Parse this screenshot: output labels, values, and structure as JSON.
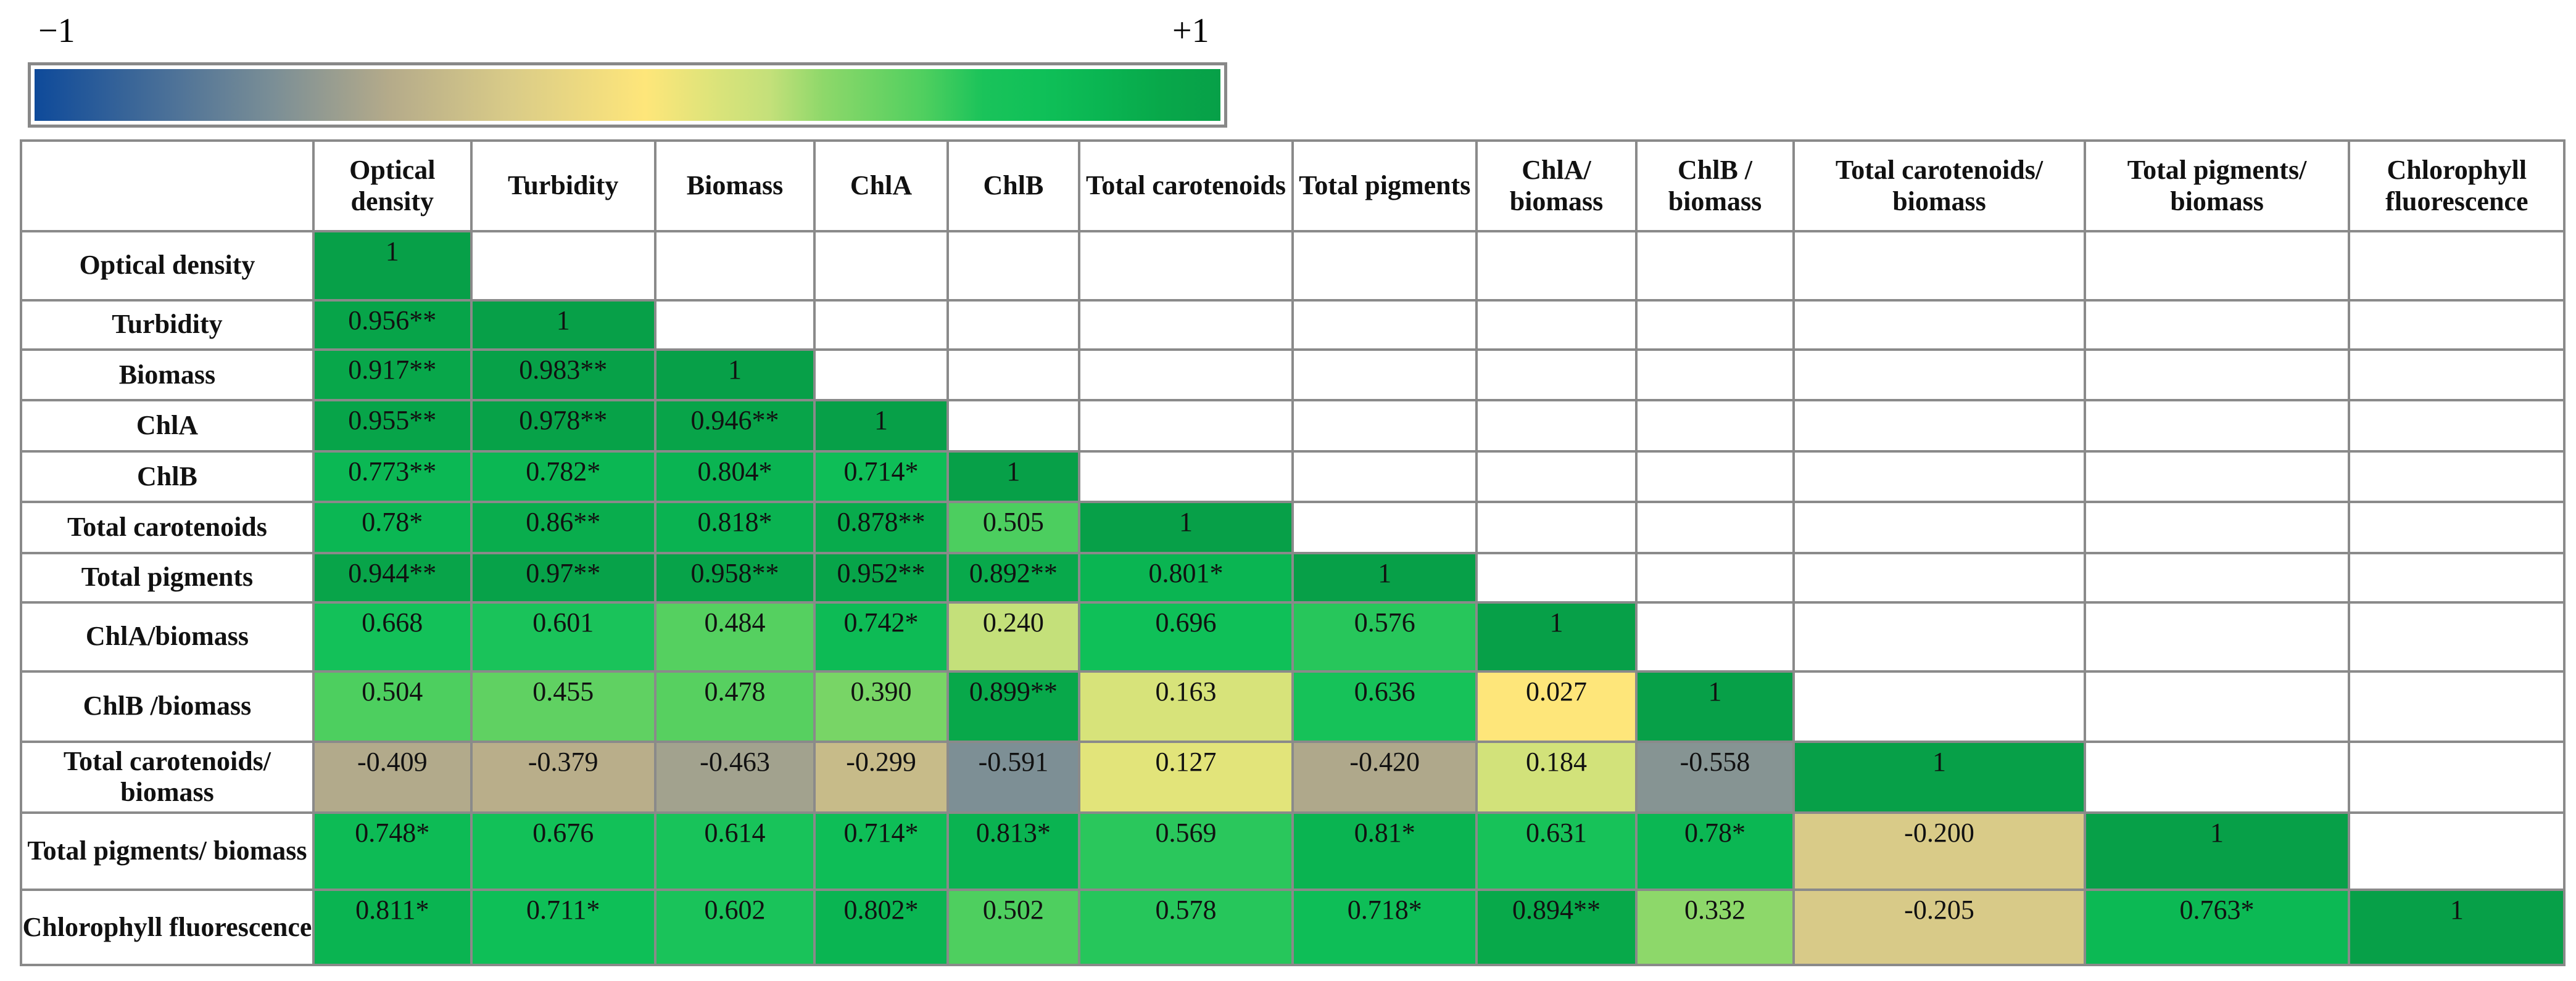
{
  "colorbar": {
    "min_label": "−1",
    "max_label": "+1"
  },
  "table": {
    "columns": [
      "Optical density",
      "Turbidity",
      "Biomass",
      "ChlA",
      "ChlB",
      "Total carotenoids",
      "Total pigments",
      "ChlA/ biomass",
      "ChlB / biomass",
      "Total carotenoids/ biomass",
      "Total pigments/ biomass",
      "Chlorophyll fluorescence"
    ],
    "rows": [
      {
        "label": "Optical density",
        "cells": [
          "1"
        ]
      },
      {
        "label": "Turbidity",
        "cells": [
          "0.956**",
          "1"
        ]
      },
      {
        "label": "Biomass",
        "cells": [
          "0.917**",
          "0.983**",
          "1"
        ]
      },
      {
        "label": "ChlA",
        "cells": [
          "0.955**",
          "0.978**",
          "0.946**",
          "1"
        ]
      },
      {
        "label": "ChlB",
        "cells": [
          "0.773**",
          "0.782*",
          "0.804*",
          "0.714*",
          "1"
        ]
      },
      {
        "label": "Total carotenoids",
        "cells": [
          "0.78*",
          "0.86**",
          "0.818*",
          "0.878**",
          "0.505",
          "1"
        ]
      },
      {
        "label": "Total pigments",
        "cells": [
          "0.944**",
          "0.97**",
          "0.958**",
          "0.952**",
          "0.892**",
          "0.801*",
          "1"
        ]
      },
      {
        "label": "ChlA/biomass",
        "cells": [
          "0.668",
          "0.601",
          "0.484",
          "0.742*",
          "0.240",
          "0.696",
          "0.576",
          "1"
        ]
      },
      {
        "label": "ChlB /biomass",
        "cells": [
          "0.504",
          "0.455",
          "0.478",
          "0.390",
          "0.899**",
          "0.163",
          "0.636",
          "0.027",
          "1"
        ]
      },
      {
        "label": "Total carotenoids/ biomass",
        "cells": [
          "-0.409",
          "-0.379",
          "-0.463",
          "-0.299",
          "-0.591",
          "0.127",
          "-0.420",
          "0.184",
          "-0.558",
          "1"
        ]
      },
      {
        "label": "Total pigments/ biomass",
        "cells": [
          "0.748*",
          "0.676",
          "0.614",
          "0.714*",
          "0.813*",
          "0.569",
          "0.81*",
          "0.631",
          "0.78*",
          "-0.200",
          "1"
        ]
      },
      {
        "label": "Chlorophyll fluorescence",
        "cells": [
          "0.811*",
          "0.711*",
          "0.602",
          "0.802*",
          "0.502",
          "0.578",
          "0.718*",
          "0.894**",
          "0.332",
          "-0.205",
          "0.763*",
          "1"
        ]
      }
    ]
  }
}
